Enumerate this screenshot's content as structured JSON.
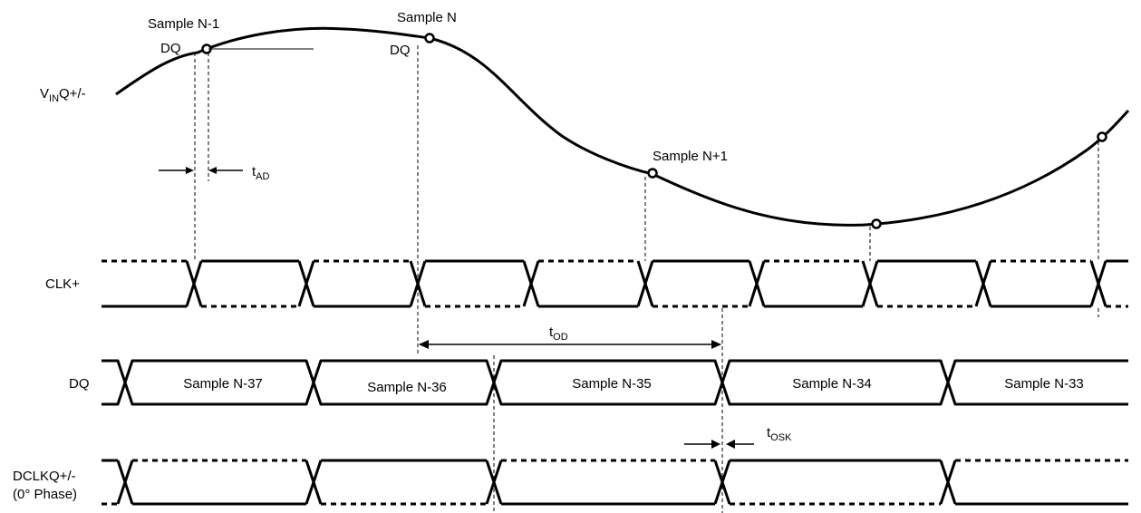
{
  "signals": {
    "vin_main": "V",
    "vin_sub": "IN",
    "vin_suffix": "Q+/-",
    "clk": "CLK+",
    "dq": "DQ",
    "dclk_line1": "DCLKQ+/-",
    "dclk_line2": "(0° Phase)"
  },
  "samples": {
    "n_minus_1": "Sample N-1",
    "n": "Sample N",
    "n_plus_1": "Sample N+1",
    "dq_tag_1": "DQ",
    "dq_tag_2": "DQ"
  },
  "dq_data": [
    "Sample N-37",
    "Sample N-36",
    "Sample N-35",
    "Sample N-34",
    "Sample N-33"
  ],
  "timing": {
    "tad_main": "t",
    "tad_sub": "AD",
    "tod_main": "t",
    "tod_sub": "OD",
    "tosk_main": "t",
    "tosk_sub": "OSK"
  }
}
